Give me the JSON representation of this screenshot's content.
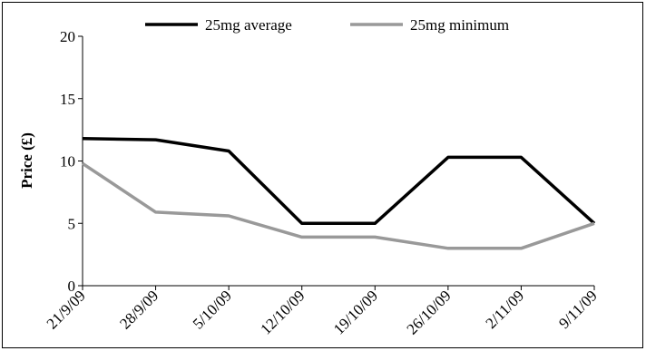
{
  "chart_data": {
    "type": "line",
    "categories": [
      "21/9/09",
      "28/9/09",
      "5/10/09",
      "12/10/09",
      "19/10/09",
      "26/10/09",
      "2/11/09",
      "9/11/09"
    ],
    "series": [
      {
        "name": "25mg average",
        "color": "#000000",
        "values": [
          11.8,
          11.7,
          10.8,
          5.0,
          5.0,
          10.3,
          10.3,
          5.0
        ]
      },
      {
        "name": "25mg minimum",
        "color": "#999999",
        "values": [
          9.8,
          5.9,
          5.6,
          3.9,
          3.9,
          3.0,
          3.0,
          5.0
        ]
      }
    ],
    "title": "",
    "xlabel": "",
    "ylabel": "Price (£)",
    "ylim": [
      0,
      20
    ],
    "yticks": [
      0,
      5,
      10,
      15,
      20
    ],
    "grid": false,
    "legend_position": "top"
  }
}
